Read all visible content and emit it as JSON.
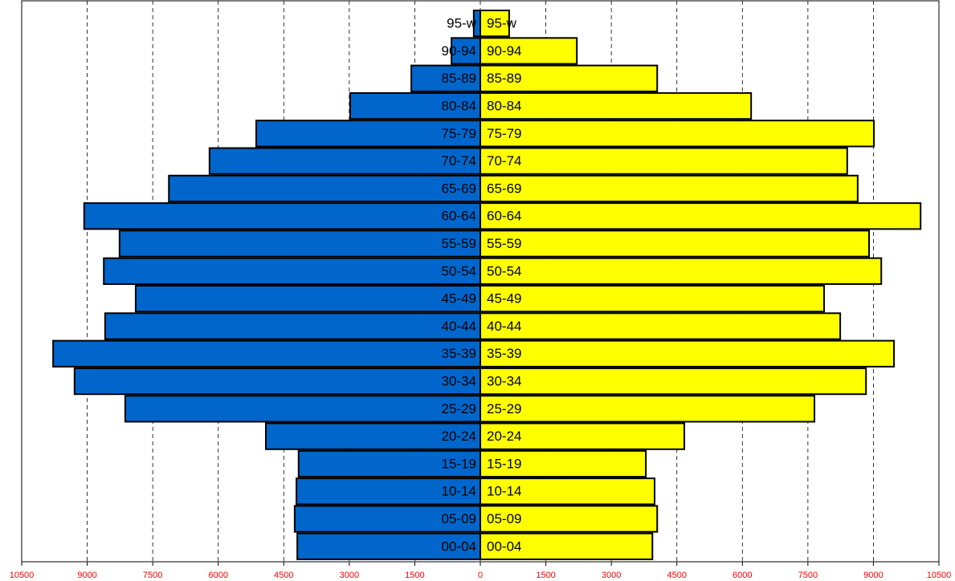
{
  "chart_data": {
    "type": "pyramid",
    "categories": [
      "95-w",
      "90-94",
      "85-89",
      "80-84",
      "75-79",
      "70-74",
      "65-69",
      "60-64",
      "55-59",
      "50-54",
      "45-49",
      "40-44",
      "35-39",
      "30-34",
      "25-29",
      "20-24",
      "15-19",
      "10-14",
      "05-09",
      "00-04"
    ],
    "series": [
      {
        "color": "#0066cc",
        "side": "left",
        "values": [
          150,
          660,
          1580,
          2980,
          5130,
          6200,
          7130,
          9070,
          8260,
          8620,
          7890,
          8590,
          9780,
          9290,
          8130,
          4910,
          4160,
          4210,
          4250,
          4190
        ]
      },
      {
        "color": "#ffff00",
        "side": "right",
        "values": [
          660,
          2210,
          4050,
          6200,
          9010,
          8400,
          8640,
          10080,
          8900,
          9180,
          7870,
          8240,
          9470,
          8830,
          7650,
          4670,
          3790,
          3990,
          4050,
          3940
        ]
      }
    ],
    "xlim": [
      -10500,
      10500
    ],
    "xticks": [
      {
        "value": -10500,
        "label": "10500"
      },
      {
        "value": -9000,
        "label": "9000"
      },
      {
        "value": -7500,
        "label": "7500"
      },
      {
        "value": -6000,
        "label": "6000"
      },
      {
        "value": -4500,
        "label": "4500"
      },
      {
        "value": -3000,
        "label": "3000"
      },
      {
        "value": -1500,
        "label": "1500"
      },
      0,
      1500,
      3000,
      4500,
      6000,
      7500,
      9000,
      10500
    ],
    "tick_color": "#ff0000",
    "grid": true
  }
}
